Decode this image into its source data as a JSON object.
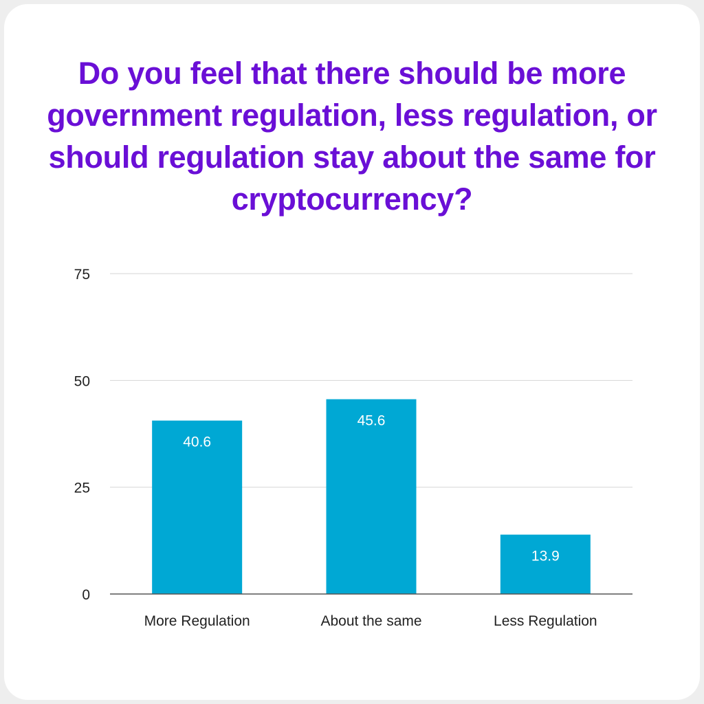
{
  "title": "Do you feel that there should be more government regulation, less regulation, or should regulation stay about the same for cryptocurrency?",
  "colors": {
    "title": "#6a0fd6",
    "bar": "#00a8d4",
    "grid": "#d6d6d6",
    "axis": "#555555",
    "background": "#ffffff"
  },
  "chart_data": {
    "type": "bar",
    "title": "Do you feel that there should be more government regulation, less regulation, or should regulation stay about the same for cryptocurrency?",
    "categories": [
      "More Regulation",
      "About the same",
      "Less Regulation"
    ],
    "values": [
      40.6,
      45.6,
      13.9
    ],
    "data_labels": [
      "40.6",
      "45.6",
      "13.9"
    ],
    "y_ticks": [
      0,
      25,
      50,
      75
    ],
    "ylim": [
      0,
      75
    ],
    "xlabel": "",
    "ylabel": "",
    "grid": true,
    "legend": "none"
  }
}
